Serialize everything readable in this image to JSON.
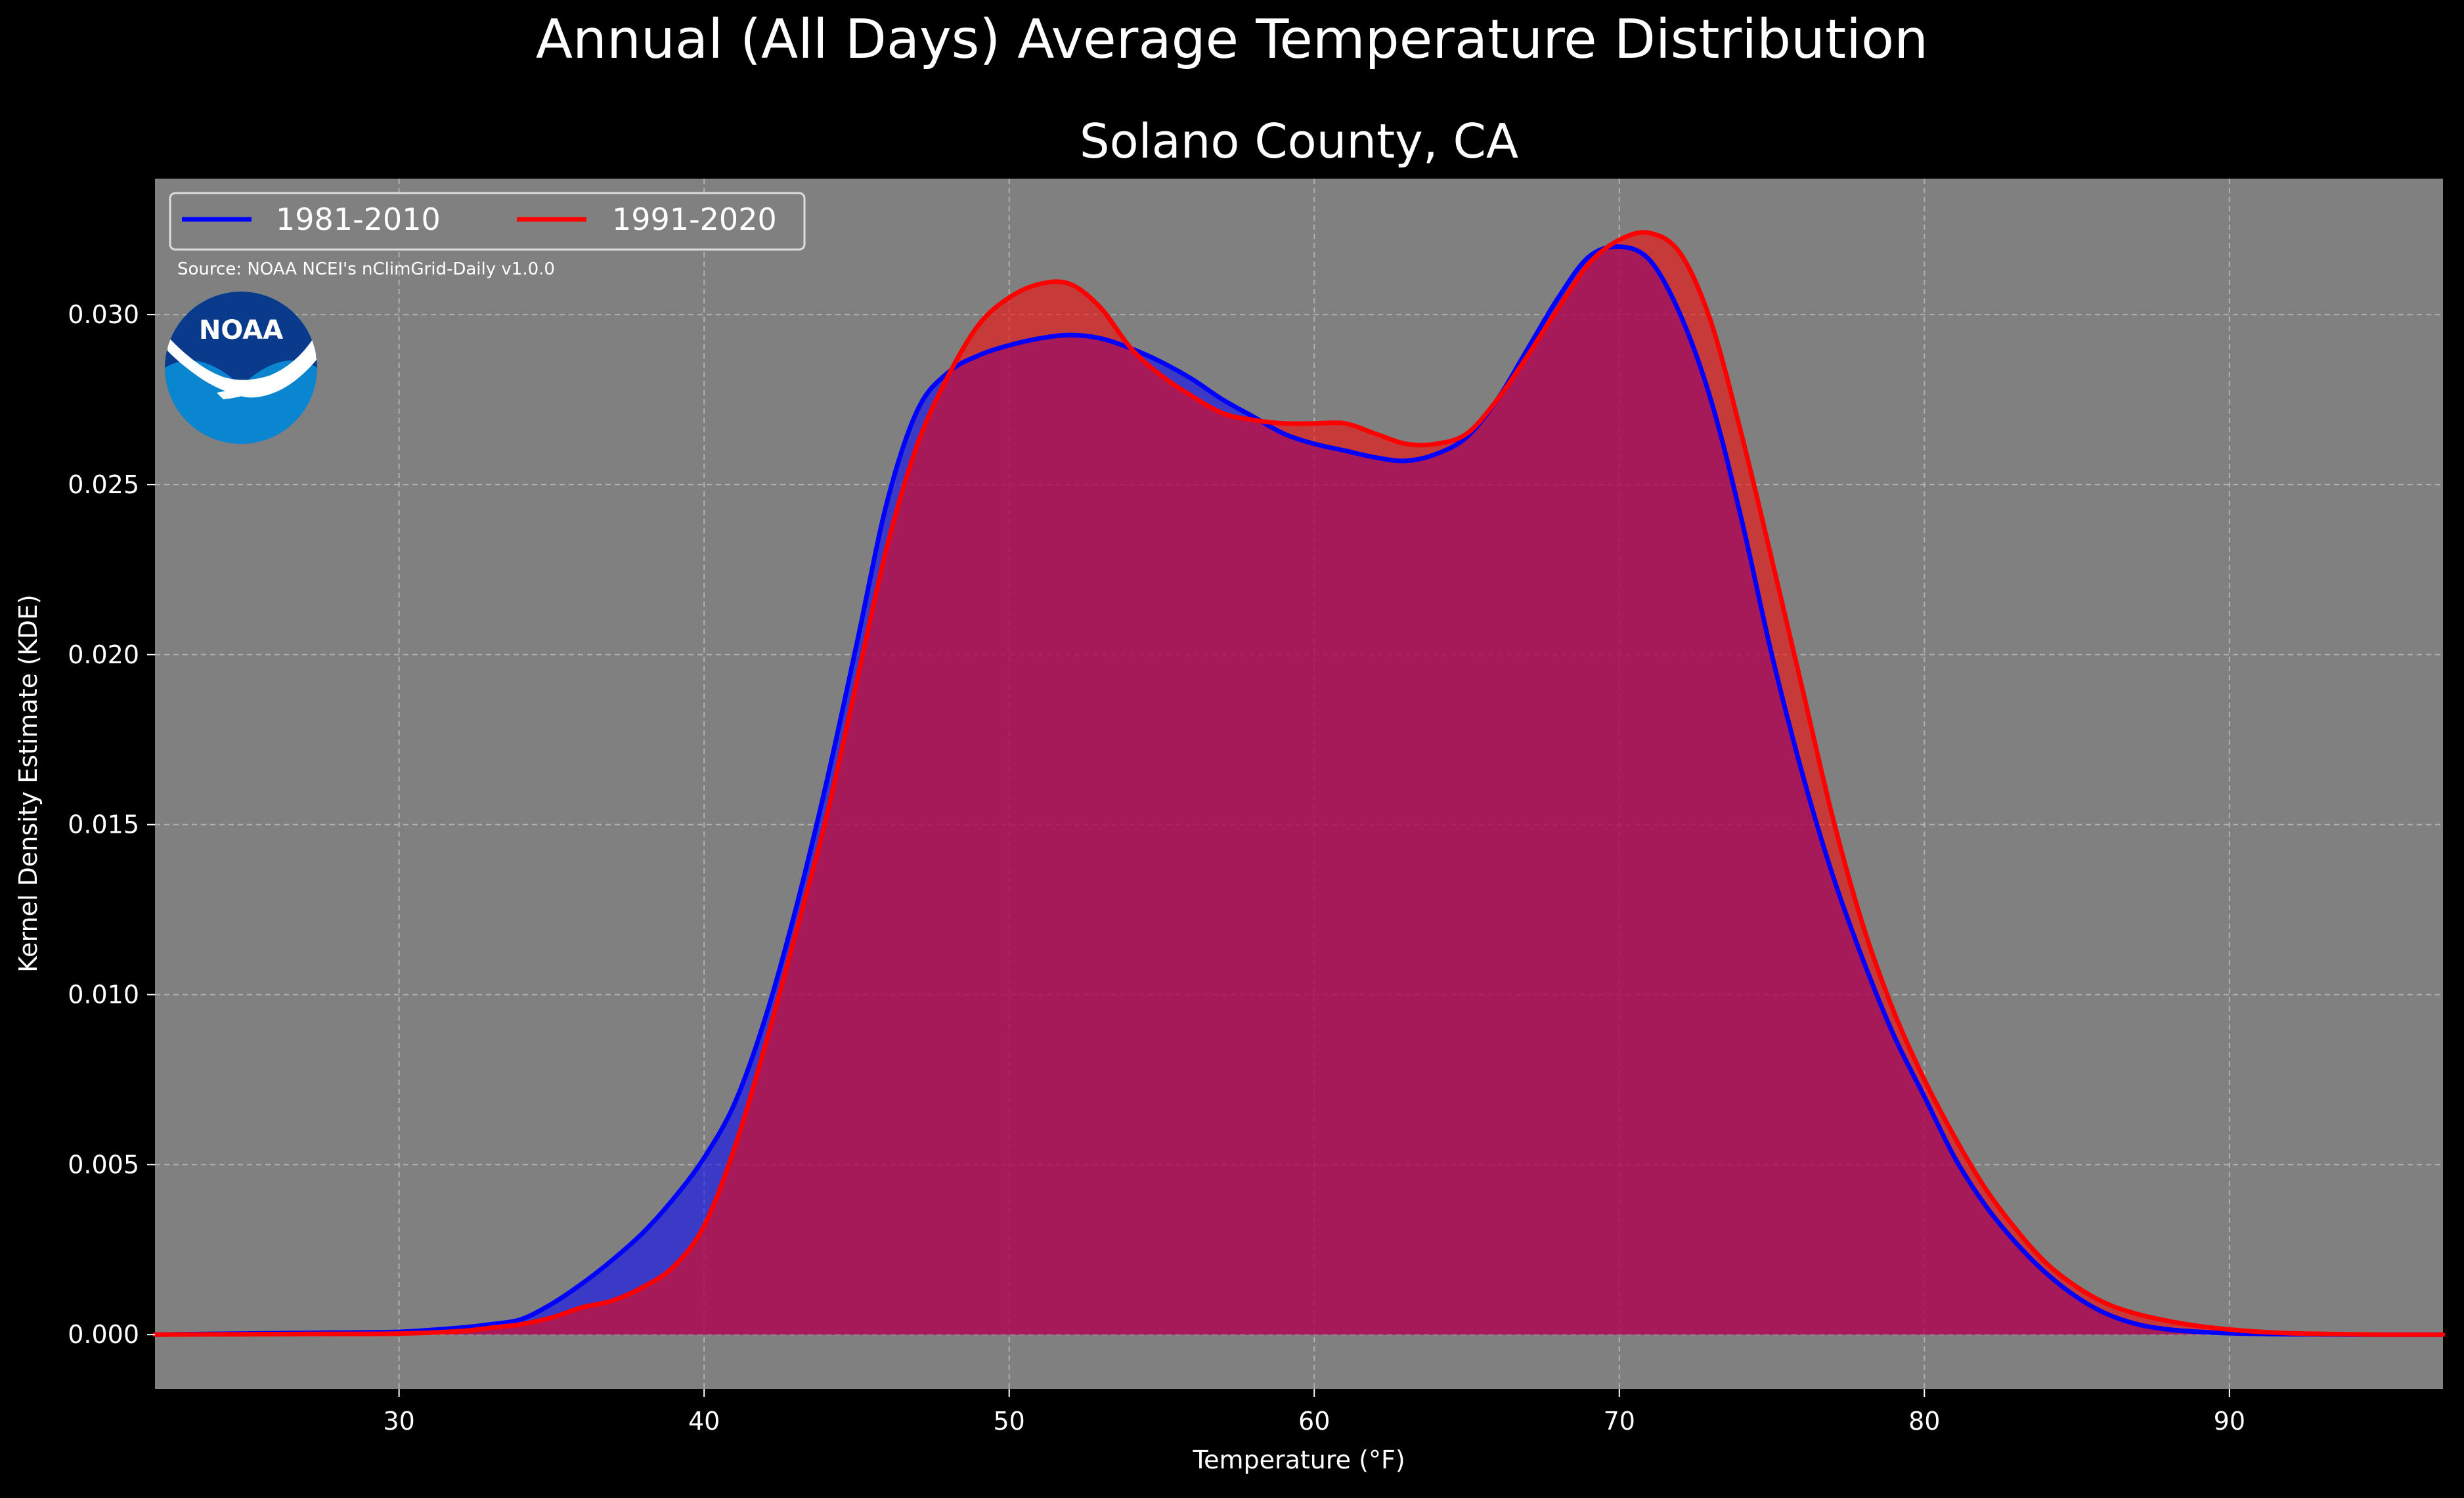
{
  "chart_data": {
    "type": "area",
    "suptitle": "Annual (All Days) Average Temperature Distribution",
    "title": "Solano County, CA",
    "xlabel": "Temperature (°F)",
    "ylabel": "Kernel Density Estimate (KDE)",
    "xlim": [
      22,
      97
    ],
    "ylim": [
      -0.0016,
      0.034
    ],
    "x_ticks": [
      30,
      40,
      50,
      60,
      70,
      80,
      90
    ],
    "y_ticks": [
      0.0,
      0.005,
      0.01,
      0.015,
      0.02,
      0.025,
      0.03
    ],
    "x_tick_labels": [
      "30",
      "40",
      "50",
      "60",
      "70",
      "80",
      "90"
    ],
    "y_tick_labels": [
      "0.000",
      "0.005",
      "0.010",
      "0.015",
      "0.020",
      "0.025",
      "0.030"
    ],
    "grid": true,
    "legend_position": "top-left",
    "source_note": "Source: NOAA NCEI's nClimGrid-Daily v1.0.0",
    "logo_text": "NOAA",
    "colors": {
      "figure_background": "#000000",
      "plot_background": "#808080",
      "grid": "#c0c0c0",
      "text": "#ffffff",
      "logo_dark": "#0a3a8c",
      "logo_light": "#0a85d0"
    },
    "series": [
      {
        "name": "1981-2010",
        "color": "#0000ff",
        "fill_color": "#0000ff",
        "x": [
          22,
          25,
          28,
          30,
          32,
          33,
          34,
          35,
          36,
          37,
          38,
          39,
          40,
          41,
          42,
          43,
          44,
          45,
          46,
          47,
          48,
          49,
          50,
          51,
          52,
          53,
          54,
          55,
          56,
          57,
          58,
          59,
          60,
          61,
          62,
          63,
          64,
          65,
          66,
          67,
          68,
          69,
          70,
          71,
          72,
          73,
          74,
          75,
          76,
          77,
          78,
          79,
          80,
          81,
          82,
          83,
          84,
          85,
          86,
          87,
          88,
          89,
          90,
          91,
          92,
          93,
          94,
          95,
          96,
          97
        ],
        "y": [
          0.0,
          3e-05,
          6e-05,
          8e-05,
          0.0002,
          0.0003,
          0.00045,
          0.0009,
          0.0015,
          0.0022,
          0.003,
          0.004,
          0.0052,
          0.0068,
          0.0093,
          0.0125,
          0.0162,
          0.0203,
          0.0245,
          0.0272,
          0.0283,
          0.0288,
          0.0291,
          0.0293,
          0.0294,
          0.0293,
          0.029,
          0.0286,
          0.0281,
          0.0275,
          0.027,
          0.0265,
          0.0262,
          0.026,
          0.0258,
          0.0257,
          0.0259,
          0.0264,
          0.0275,
          0.029,
          0.0305,
          0.0317,
          0.032,
          0.0316,
          0.03,
          0.0275,
          0.024,
          0.02,
          0.0165,
          0.0135,
          0.011,
          0.0088,
          0.007,
          0.0052,
          0.0038,
          0.0027,
          0.0018,
          0.0011,
          0.0006,
          0.0003,
          0.00015,
          8e-05,
          4e-05,
          2e-05,
          1e-05,
          5e-06,
          0.0,
          0.0,
          0.0,
          0.0
        ]
      },
      {
        "name": "1991-2020",
        "color": "#ff0000",
        "fill_color": "#ff0000",
        "x": [
          22,
          25,
          28,
          30,
          32,
          33,
          34,
          35,
          36,
          37,
          38,
          39,
          40,
          41,
          42,
          43,
          44,
          45,
          46,
          47,
          48,
          49,
          50,
          51,
          52,
          53,
          54,
          55,
          56,
          57,
          58,
          59,
          60,
          61,
          62,
          63,
          64,
          65,
          66,
          67,
          68,
          69,
          70,
          71,
          72,
          73,
          74,
          75,
          76,
          77,
          78,
          79,
          80,
          81,
          82,
          83,
          84,
          85,
          86,
          87,
          88,
          89,
          90,
          91,
          92,
          93,
          94,
          95,
          96,
          97
        ],
        "y": [
          0.0,
          1e-05,
          2e-05,
          3e-05,
          0.0001,
          0.0002,
          0.0003,
          0.0005,
          0.0008,
          0.001,
          0.0014,
          0.002,
          0.0032,
          0.0055,
          0.0085,
          0.0118,
          0.0152,
          0.0192,
          0.0232,
          0.0262,
          0.0282,
          0.0297,
          0.0305,
          0.0309,
          0.0309,
          0.0302,
          0.029,
          0.0282,
          0.0276,
          0.0271,
          0.0269,
          0.0268,
          0.0268,
          0.0268,
          0.0265,
          0.0262,
          0.0262,
          0.0265,
          0.0275,
          0.0288,
          0.0302,
          0.0315,
          0.0322,
          0.0324,
          0.0318,
          0.0298,
          0.0265,
          0.0228,
          0.019,
          0.0152,
          0.012,
          0.0095,
          0.0075,
          0.0058,
          0.0043,
          0.0031,
          0.0021,
          0.0014,
          0.0009,
          0.0006,
          0.0004,
          0.00025,
          0.00015,
          8e-05,
          4e-05,
          2e-05,
          1e-05,
          0.0,
          0.0,
          0.0
        ]
      }
    ]
  }
}
